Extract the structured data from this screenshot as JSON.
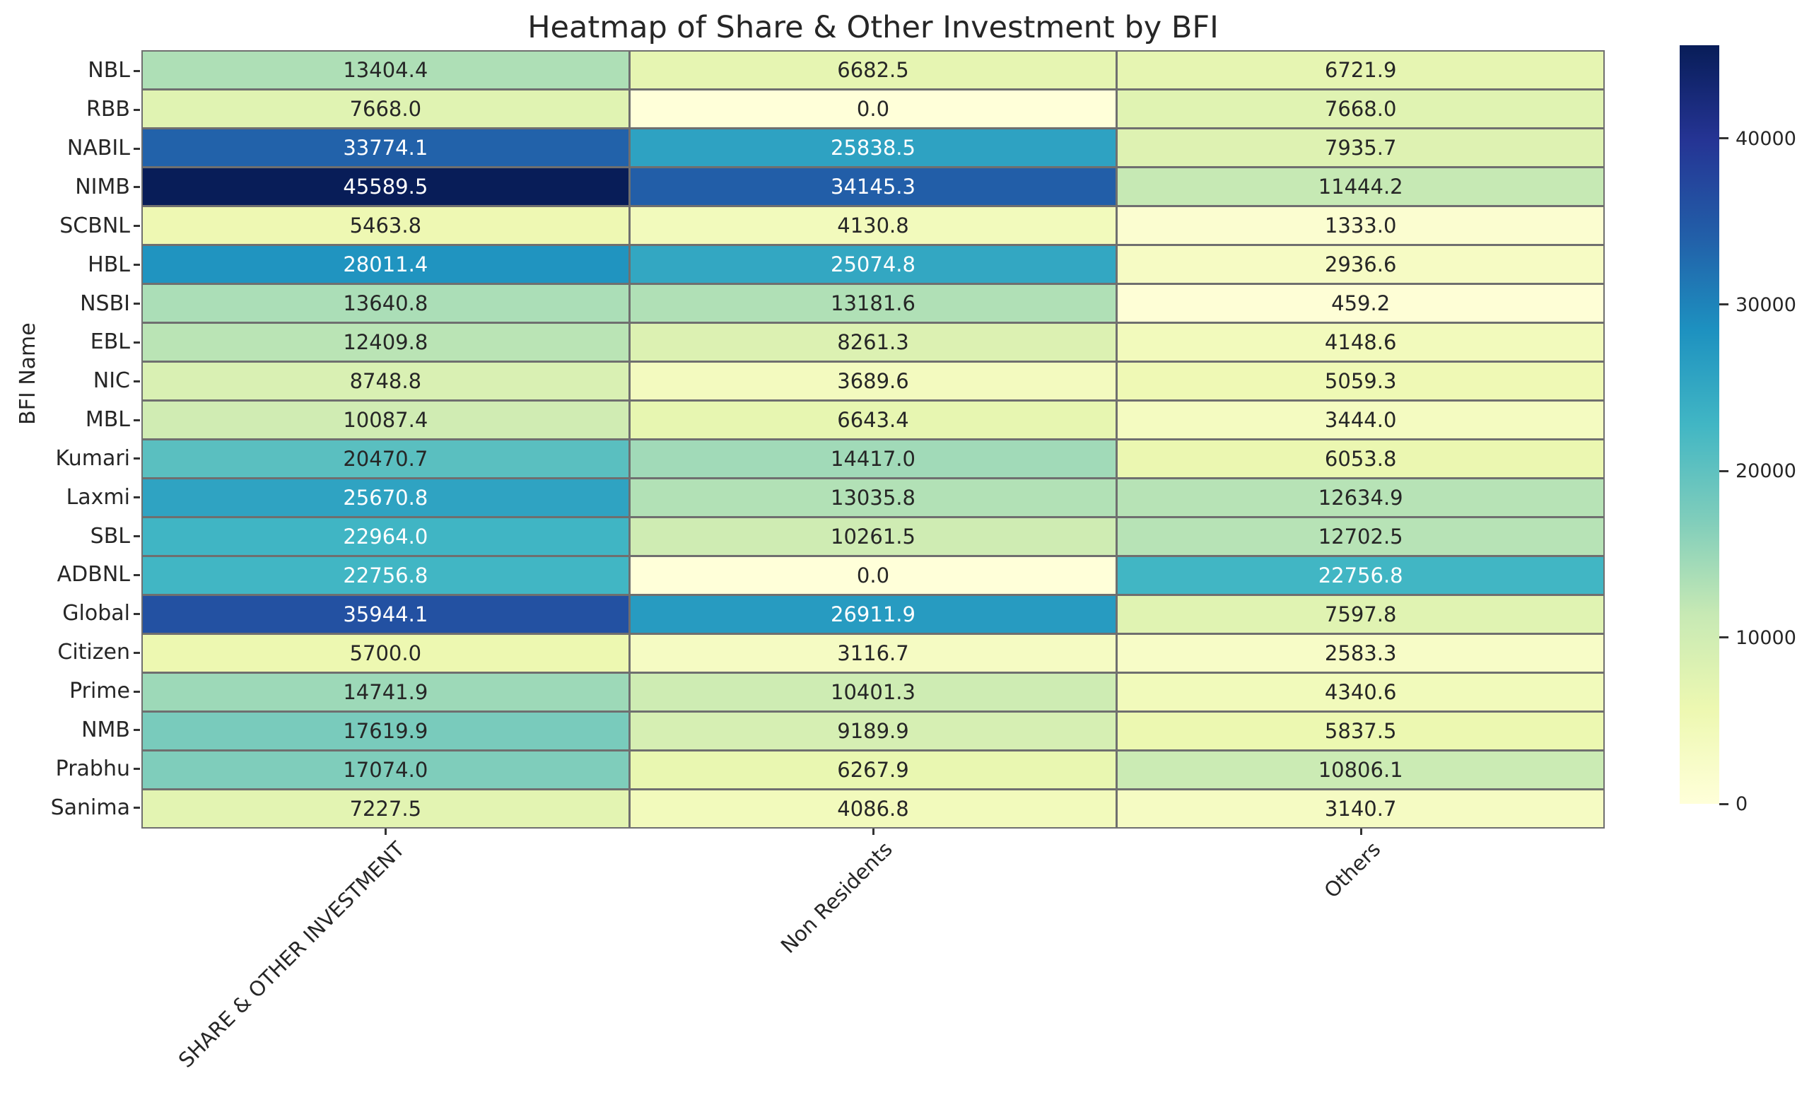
{
  "title": "Heatmap of Share & Other Investment by BFI",
  "chart_data": {
    "type": "heatmap",
    "title": "Heatmap of Share & Other Investment by BFI",
    "xlabel": "",
    "ylabel": "BFI Name",
    "columns": [
      "SHARE & OTHER INVESTMENT",
      "Non Residents",
      "Others"
    ],
    "rows": [
      "NBL",
      "RBB",
      "NABIL",
      "NIMB",
      "SCBNL",
      "HBL",
      "NSBI",
      "EBL",
      "NIC",
      "MBL",
      "Kumari",
      "Laxmi",
      "SBL",
      "ADBNL",
      "Global",
      "Citizen",
      "Prime",
      "NMB",
      "Prabhu",
      "Sanima"
    ],
    "values": [
      [
        13404.4,
        6682.5,
        6721.9
      ],
      [
        7668.0,
        0.0,
        7668.0
      ],
      [
        33774.1,
        25838.5,
        7935.7
      ],
      [
        45589.5,
        34145.3,
        11444.2
      ],
      [
        5463.8,
        4130.8,
        1333.0
      ],
      [
        28011.4,
        25074.8,
        2936.6
      ],
      [
        13640.8,
        13181.6,
        459.2
      ],
      [
        12409.8,
        8261.3,
        4148.6
      ],
      [
        8748.8,
        3689.6,
        5059.3
      ],
      [
        10087.4,
        6643.4,
        3444.0
      ],
      [
        20470.7,
        14417.0,
        6053.8
      ],
      [
        25670.8,
        13035.8,
        12634.9
      ],
      [
        22964.0,
        10261.5,
        12702.5
      ],
      [
        22756.8,
        0.0,
        22756.8
      ],
      [
        35944.1,
        26911.9,
        7597.8
      ],
      [
        5700.0,
        3116.7,
        2583.3
      ],
      [
        14741.9,
        10401.3,
        4340.6
      ],
      [
        17619.9,
        9189.9,
        5837.5
      ],
      [
        17074.0,
        6267.9,
        10806.1
      ],
      [
        7227.5,
        4086.8,
        3140.7
      ]
    ],
    "vmin": 0,
    "vmax": 45589.5,
    "value_decimals": 1,
    "colormap": "YlGnBu",
    "colormap_stops": [
      "#ffffd9",
      "#edf8b1",
      "#c7e9b4",
      "#7fcdbb",
      "#41b6c4",
      "#1d91c0",
      "#225ea8",
      "#253494",
      "#081d58"
    ],
    "colorbar_ticks": [
      0,
      10000,
      20000,
      30000,
      40000
    ],
    "colorbar_position": "right",
    "grid": true
  },
  "colors": {
    "gridline": "#6f6f6f",
    "text_dark": "#262626",
    "text_light": "#ffffff",
    "background": "#ffffff"
  }
}
